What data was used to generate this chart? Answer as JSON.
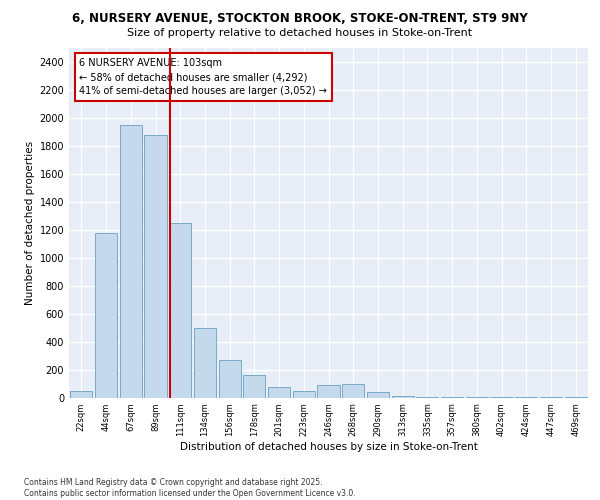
{
  "title_line1": "6, NURSERY AVENUE, STOCKTON BROOK, STOKE-ON-TRENT, ST9 9NY",
  "title_line2": "Size of property relative to detached houses in Stoke-on-Trent",
  "xlabel": "Distribution of detached houses by size in Stoke-on-Trent",
  "ylabel": "Number of detached properties",
  "categories": [
    "22sqm",
    "44sqm",
    "67sqm",
    "89sqm",
    "111sqm",
    "134sqm",
    "156sqm",
    "178sqm",
    "201sqm",
    "223sqm",
    "246sqm",
    "268sqm",
    "290sqm",
    "313sqm",
    "335sqm",
    "357sqm",
    "380sqm",
    "402sqm",
    "424sqm",
    "447sqm",
    "469sqm"
  ],
  "values": [
    50,
    1175,
    1950,
    1875,
    1250,
    500,
    270,
    160,
    75,
    50,
    90,
    100,
    40,
    10,
    5,
    5,
    5,
    3,
    3,
    2,
    2
  ],
  "bar_color": "#c5d9ed",
  "bar_edge_color": "#7aaac8",
  "vline_color": "#cc0000",
  "vline_pos": 3.57,
  "annotation_text": "6 NURSERY AVENUE: 103sqm\n← 58% of detached houses are smaller (4,292)\n41% of semi-detached houses are larger (3,052) →",
  "annotation_box_color": "#ffffff",
  "annotation_box_edge": "#cc0000",
  "background_color": "#e8eef7",
  "grid_color": "#ffffff",
  "ylim": [
    0,
    2500
  ],
  "yticks": [
    0,
    200,
    400,
    600,
    800,
    1000,
    1200,
    1400,
    1600,
    1800,
    2000,
    2200,
    2400
  ],
  "footer_line1": "Contains HM Land Registry data © Crown copyright and database right 2025.",
  "footer_line2": "Contains public sector information licensed under the Open Government Licence v3.0."
}
